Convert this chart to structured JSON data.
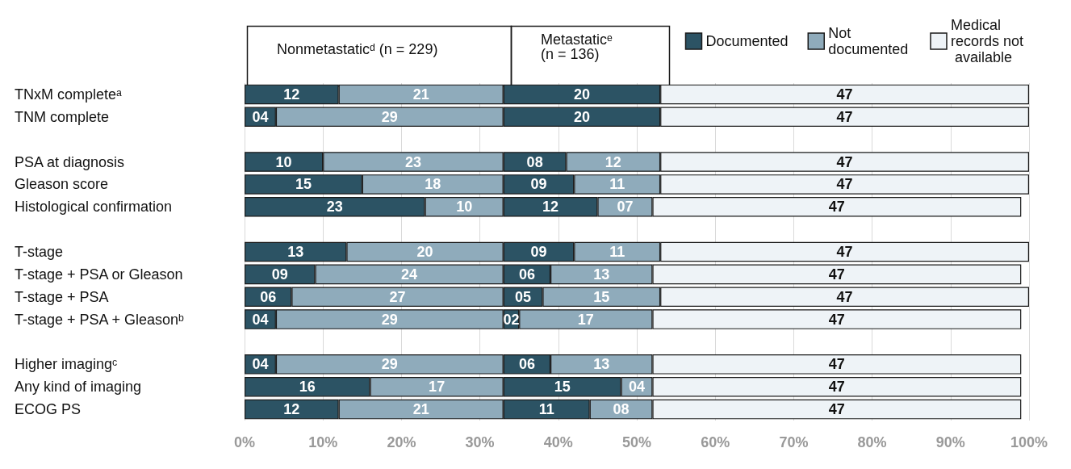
{
  "chart_data": {
    "type": "bar",
    "orientation": "horizontal",
    "stacked": true,
    "categories": [
      "TNxM completeᵃ",
      "TNM complete",
      null,
      "PSA at diagnosis",
      "Gleason score",
      "Histological confirmation",
      null,
      "T-stage",
      "T-stage + PSA or Gleason",
      "T-stage + PSA",
      "T-stage + PSA + Gleasonᵇ",
      null,
      "Higher imagingᶜ",
      "Any kind of imaging",
      "ECOG PS"
    ],
    "series": [
      {
        "name": "Documented",
        "color": "#2c5364",
        "values": [
          12,
          4,
          null,
          10,
          15,
          23,
          null,
          13,
          9,
          6,
          4,
          null,
          4,
          16,
          12
        ],
        "value_labels": [
          "12",
          "04",
          null,
          "10",
          "15",
          "23",
          null,
          "13",
          "09",
          "06",
          "04",
          null,
          "04",
          "16",
          "12"
        ]
      },
      {
        "name": "Not documented",
        "color": "#8fabbb",
        "values": [
          21,
          29,
          null,
          23,
          18,
          10,
          null,
          20,
          24,
          27,
          29,
          null,
          29,
          17,
          21
        ],
        "value_labels": [
          "21",
          "29",
          null,
          "23",
          "18",
          "10",
          null,
          "20",
          "24",
          "27",
          "29",
          null,
          "29",
          "17",
          "21"
        ]
      },
      {
        "color": "#2c5364",
        "values": [
          20,
          20,
          null,
          8,
          9,
          12,
          null,
          9,
          6,
          5,
          2,
          null,
          6,
          15,
          11
        ],
        "value_labels": [
          "20",
          "20",
          null,
          "08",
          "09",
          "12",
          null,
          "09",
          "06",
          "05",
          "02",
          null,
          "06",
          "15",
          "11"
        ]
      },
      {
        "color": "#8fabbb",
        "values": [
          null,
          null,
          null,
          12,
          11,
          7,
          null,
          11,
          13,
          15,
          17,
          null,
          13,
          4,
          8
        ],
        "value_labels": [
          null,
          null,
          null,
          "12",
          "11",
          "07",
          null,
          "11",
          "13",
          "15",
          "17",
          null,
          "13",
          "04",
          "08"
        ]
      },
      {
        "name": "Medical records not available",
        "color": "#eef3f7",
        "values": [
          47,
          47,
          null,
          47,
          47,
          47,
          null,
          47,
          47,
          47,
          47,
          null,
          47,
          47,
          47
        ],
        "value_labels": [
          "47",
          "47",
          null,
          "47",
          "47",
          "47",
          null,
          "47",
          "47",
          "47",
          "47",
          null,
          "47",
          "47",
          "47"
        ]
      }
    ],
    "xlim": [
      0,
      100
    ],
    "xticks": [
      {
        "value": 0,
        "label": "0%"
      },
      {
        "value": 10,
        "label": "10%"
      },
      {
        "value": 20,
        "label": "20%"
      },
      {
        "value": 30,
        "label": "30%"
      },
      {
        "value": 40,
        "label": "40%"
      },
      {
        "value": 50,
        "label": "50%"
      },
      {
        "value": 60,
        "label": "60%"
      },
      {
        "value": 70,
        "label": "70%"
      },
      {
        "value": 80,
        "label": "80%"
      },
      {
        "value": 90,
        "label": "90%"
      },
      {
        "value": 100,
        "label": "100%"
      }
    ],
    "annotations": [
      "Nonmetastaticᵈ (n = 229)",
      "Metastaticᵉ (n = 136)"
    ],
    "grid": "x",
    "legend": "top right"
  }
}
